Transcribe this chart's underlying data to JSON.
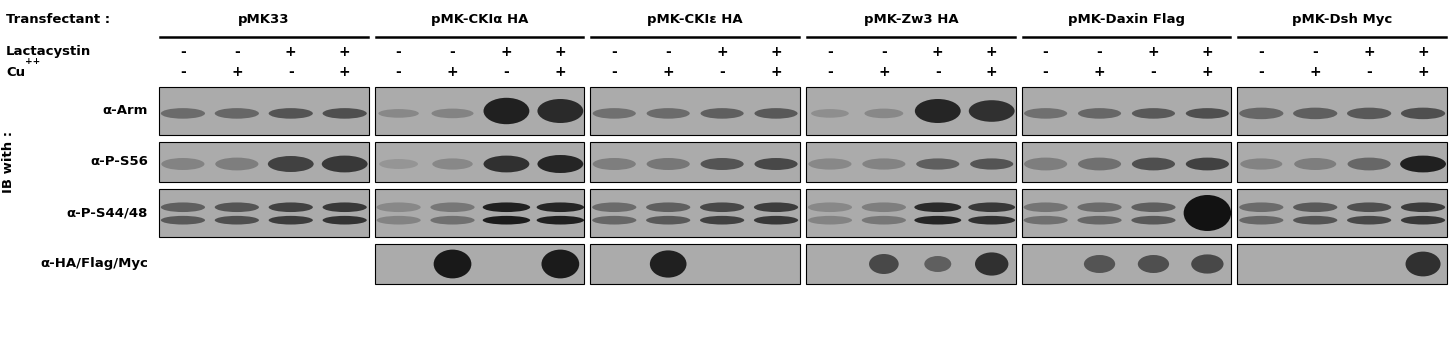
{
  "background_color": "#ffffff",
  "transfectants": [
    "pMK33",
    "pMK-CKIα HA",
    "pMK-CKIε HA",
    "pMK-Zw3 HA",
    "pMK-Daxin Flag",
    "pMK-Dsh Myc"
  ],
  "lactacystin_row": [
    "-",
    "-",
    "+",
    "+",
    "-",
    "-",
    "+",
    "+",
    "-",
    "-",
    "+",
    "+",
    "-",
    "-",
    "+",
    "+",
    "-",
    "-",
    "+",
    "+",
    "-",
    "-",
    "+",
    "+"
  ],
  "cu_row": [
    "-",
    "+",
    "-",
    "+",
    "-",
    "+",
    "-",
    "+",
    "-",
    "+",
    "-",
    "+",
    "-",
    "+",
    "-",
    "+",
    "-",
    "+",
    "-",
    "+",
    "-",
    "+",
    "-",
    "+"
  ],
  "row_labels": [
    "α-Arm",
    "α-P-S56",
    "α-P-S44/48",
    "α-HA/Flag/Myc"
  ],
  "has_panel": [
    [
      1,
      1,
      1,
      1,
      1,
      1
    ],
    [
      1,
      1,
      1,
      1,
      1,
      1
    ],
    [
      1,
      1,
      1,
      1,
      1,
      1
    ],
    [
      0,
      1,
      1,
      1,
      1,
      1
    ]
  ],
  "panel_bg": "#aaaaaa",
  "panel_edge": "#000000"
}
